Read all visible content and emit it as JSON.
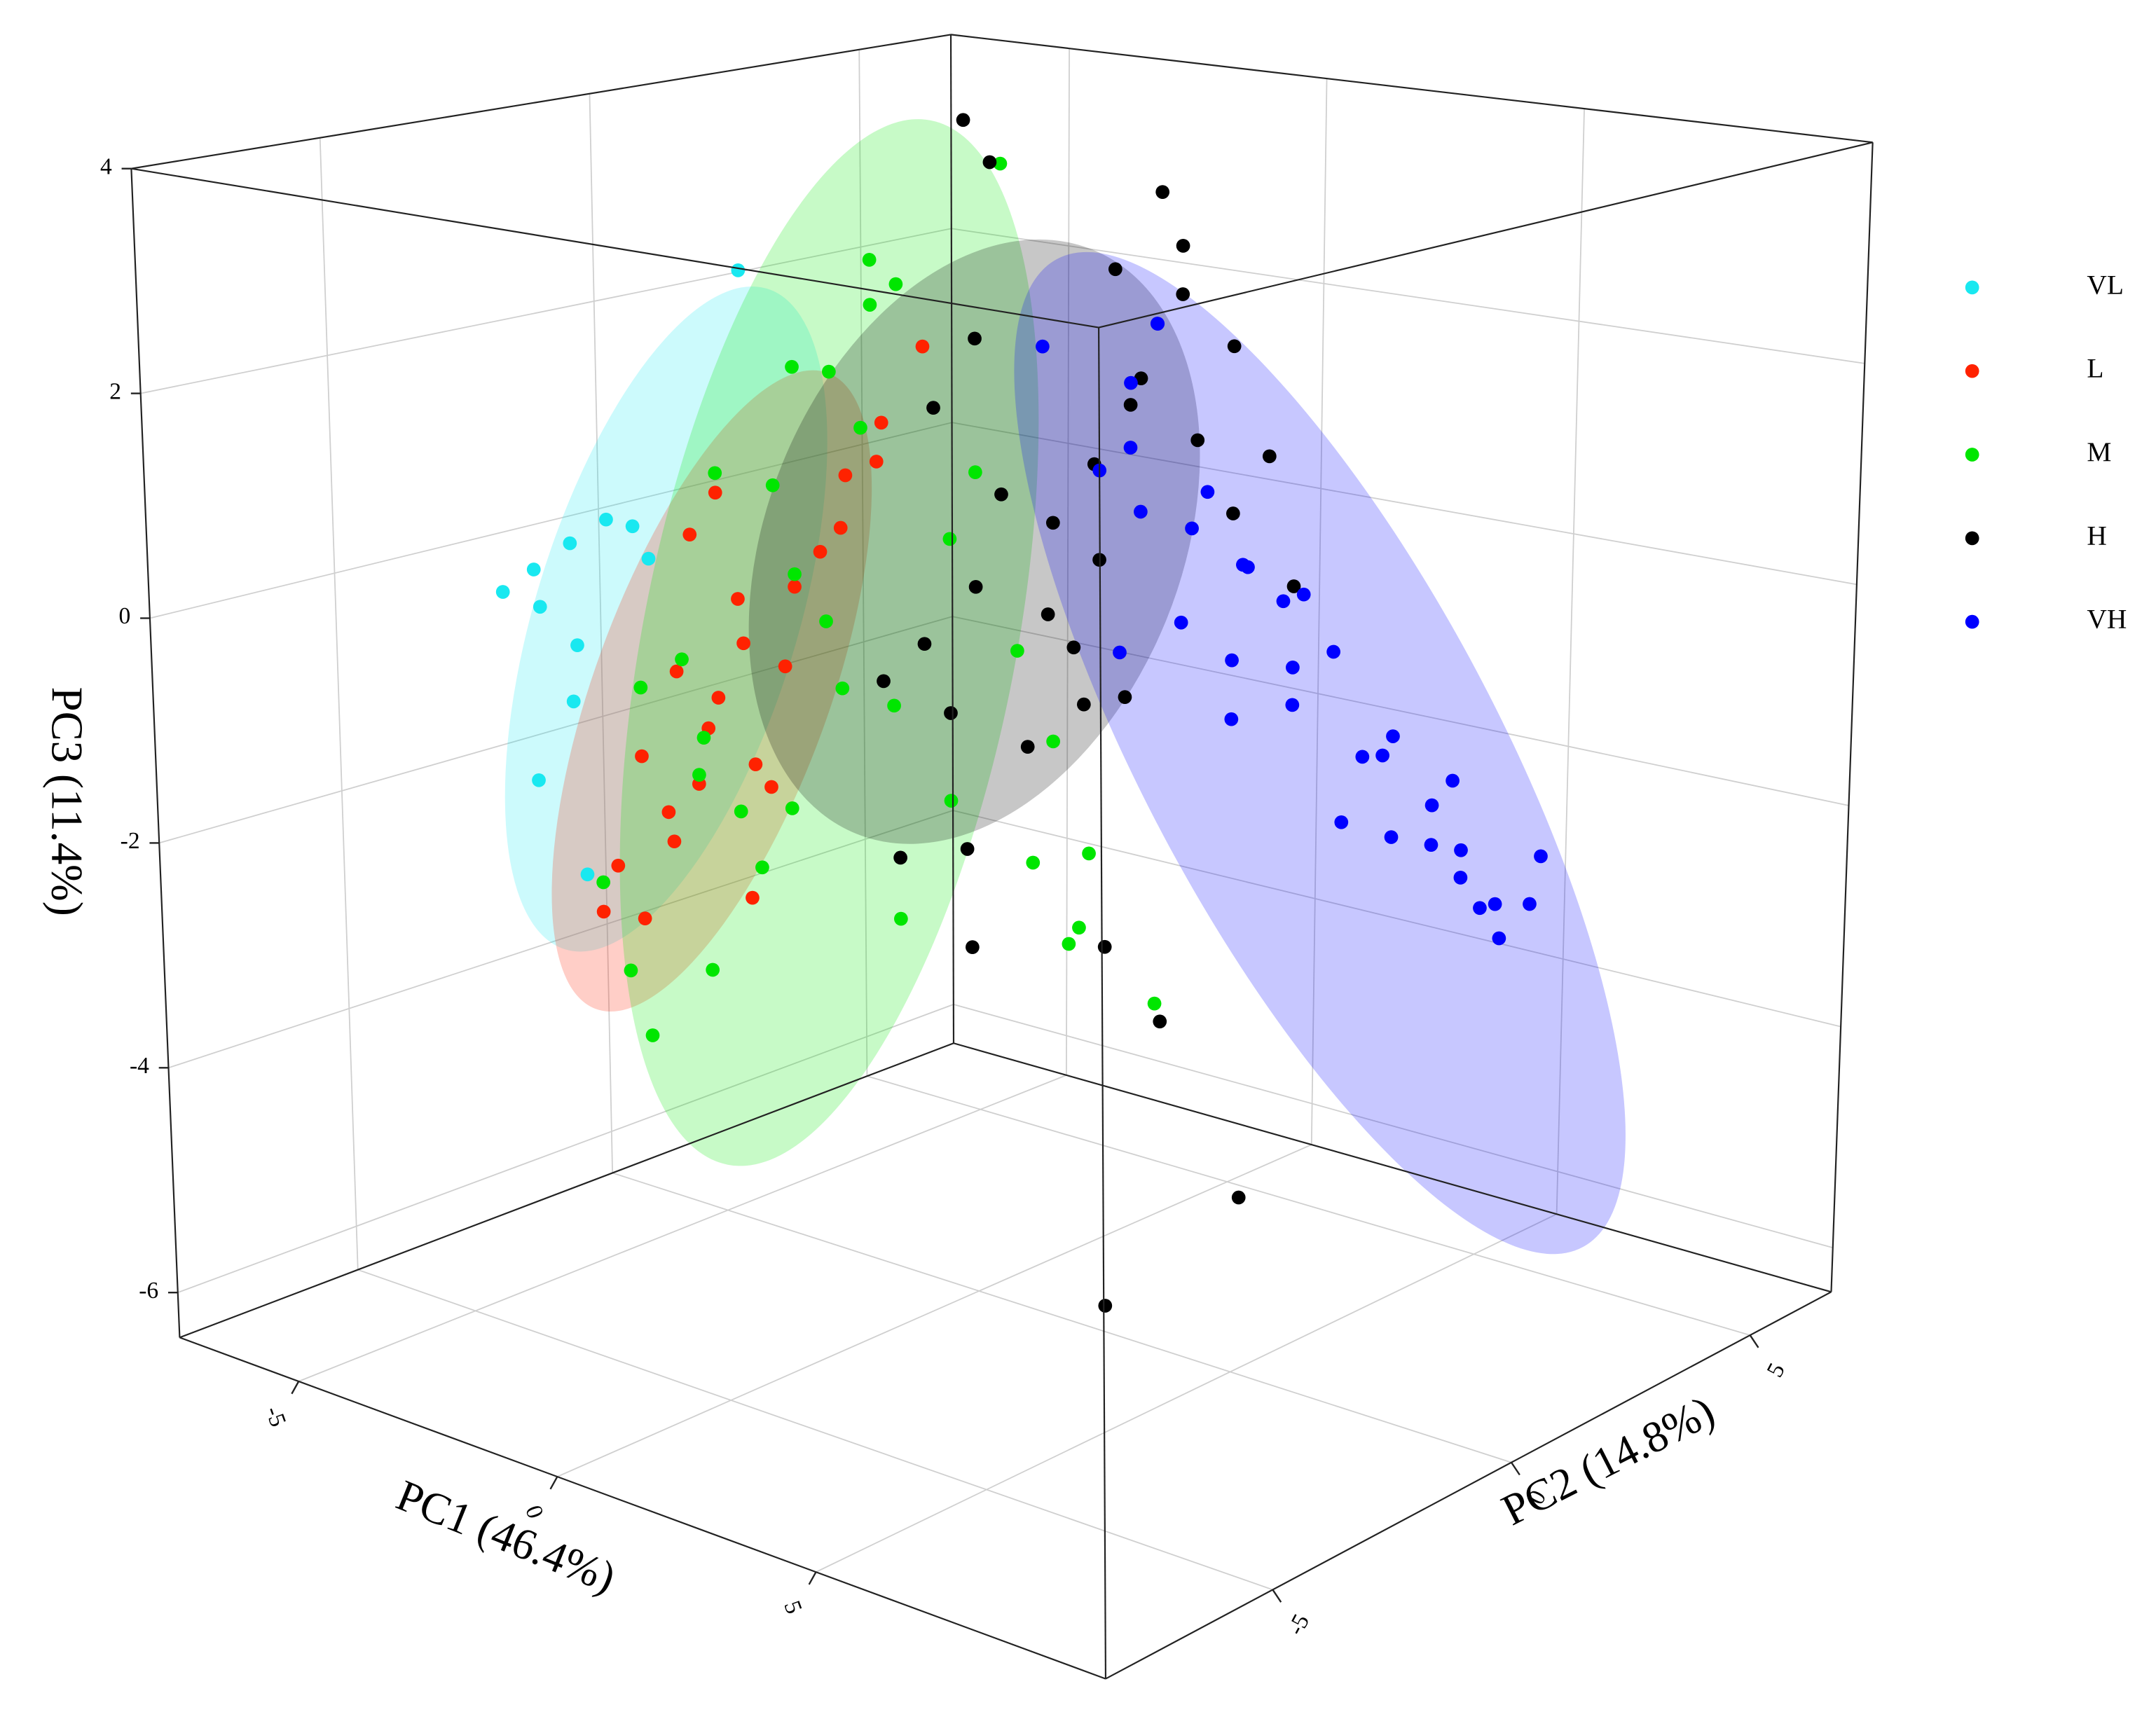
{
  "chart_data": {
    "type": "scatter3d",
    "xlabel": "PC1 (46.4%)",
    "ylabel": "PC2 (14.8%)",
    "zlabel": "PC3 (11.4%)",
    "xlim": [
      -7.3,
      10.6
    ],
    "ylim": [
      -8.5,
      6.7
    ],
    "zlim": [
      -6.4,
      4
    ],
    "xticks": [
      -5,
      0,
      5
    ],
    "yticks": [
      -5,
      0,
      5
    ],
    "zticks": [
      -6,
      -4,
      -2,
      0,
      2,
      4
    ],
    "grid": true,
    "legend": "right",
    "series": [
      {
        "name": "VL",
        "color": "#19e8f0",
        "x": [
          -3,
          -5,
          -5.2,
          -4.8,
          -4.5,
          -5,
          -4.2,
          -4.6,
          -4.4,
          -3.8,
          -4.9,
          -5.3
        ],
        "y": [
          -1.5,
          -3.5,
          -3.2,
          -3,
          -2.6,
          -2.8,
          -3.4,
          -3.1,
          -2.2,
          -2.5,
          -3.6,
          -3.8
        ],
        "z": [
          2.8,
          0.1,
          -0.3,
          0.3,
          0.5,
          -1.2,
          -2.6,
          -0.6,
          0.4,
          0.2,
          -1.8,
          -0.1
        ]
      },
      {
        "name": "L",
        "color": "#ff2200",
        "x": [
          -3,
          -2.5,
          -3.5,
          -2,
          -1.5,
          -3.2,
          -2.8,
          -3.8,
          -2.2,
          -1,
          -0.5,
          -3,
          -2.6,
          -3.4,
          -1.8,
          -2.4,
          -3.6,
          -2,
          -1.2,
          -2.9,
          -3.1,
          -0.8,
          -1.6,
          -2.7,
          -3.9
        ],
        "y": [
          -2.5,
          -2,
          -3,
          -1.5,
          -1,
          -2.8,
          -2.2,
          -3.2,
          -1.8,
          -0.8,
          -0.5,
          -1.6,
          -2.6,
          -2.4,
          -1.2,
          -2,
          -2.9,
          -2.3,
          -1.4,
          -3,
          -1.9,
          -1.1,
          -2.1,
          -2.7,
          -3.4
        ],
        "z": [
          0.5,
          -0.5,
          -1.5,
          0,
          1,
          -2,
          -1,
          -2.5,
          -1.8,
          1.5,
          2.2,
          -0.2,
          -1.2,
          -0.8,
          0.3,
          -2.8,
          -3,
          -1.5,
          0.6,
          -2.2,
          0.8,
          1.2,
          -0.6,
          -1.7,
          -2.9
        ]
      },
      {
        "name": "M",
        "color": "#00e600",
        "x": [
          -1,
          0,
          -2,
          -3,
          -4,
          -1.5,
          0.5,
          1,
          -2.5,
          -3.5,
          -0.5,
          -1.8,
          -2.2,
          0,
          1.5,
          -3,
          -4.5,
          -4,
          -1,
          0.8,
          -2,
          -3.2,
          -0.2,
          -1.4,
          2,
          -2.8,
          -3.8,
          -0.8,
          0.3,
          -1.6,
          -2.4,
          -4.2,
          1.2,
          -0.6,
          -3.4
        ],
        "y": [
          -1,
          0.5,
          -1.5,
          -2,
          -2.5,
          -0.5,
          1,
          1.2,
          -1,
          -1.8,
          0,
          -0.8,
          -2,
          -0.5,
          0.5,
          -2.2,
          -2.8,
          -2.4,
          -1.2,
          0,
          -1.6,
          -1.4,
          0.2,
          -0.2,
          1.5,
          -1.1,
          -1.9,
          -0.7,
          0.8,
          -1.3,
          -0.4,
          -2.6,
          0.6,
          -0.9,
          -2
        ],
        "z": [
          3,
          3.8,
          2,
          1,
          -1,
          2.5,
          -1.5,
          -2.5,
          0,
          -1.5,
          -2,
          -1,
          -2.5,
          0.5,
          -3,
          -3.5,
          -2.8,
          -4.2,
          1.5,
          -0.5,
          -2,
          -2.2,
          1,
          -1.2,
          -3.8,
          0.8,
          -0.8,
          -3,
          -2.6,
          -0.3,
          1.8,
          -3.6,
          -3.2,
          2.8,
          -1.8
        ]
      },
      {
        "name": "H",
        "color": "#000000",
        "x": [
          0,
          0.5,
          1,
          -0.5,
          1.5,
          2,
          0.8,
          -0.2,
          1.2,
          2.5,
          0.3,
          -0.8,
          1.8,
          0.6,
          1.4,
          -0.4,
          2.2,
          0.9,
          0.1,
          1.6,
          -1,
          2.8,
          0.4,
          1.1,
          1.9,
          -0.6,
          0.7,
          2.4,
          1.3,
          0.2,
          3,
          3.2,
          2.6,
          -0.3,
          1.7
        ],
        "y": [
          0,
          1,
          2,
          -0.5,
          2.5,
          3,
          1.5,
          0.5,
          1.2,
          3.2,
          -0.8,
          -1,
          2.2,
          0.8,
          1.8,
          0.2,
          2.8,
          1,
          0.4,
          2,
          -0.5,
          3.4,
          0.6,
          1.6,
          2.4,
          -0.2,
          1.4,
          0.1,
          -1.5,
          -0.3,
          -0.5,
          2,
          1,
          0.3,
          1.2
        ],
        "z": [
          0,
          0.5,
          1.5,
          -0.5,
          2.5,
          2,
          1,
          3.8,
          0.2,
          1,
          -1,
          -0.8,
          3,
          -0.3,
          1.8,
          4.2,
          0.5,
          -0.6,
          0.8,
          3.5,
          -2.5,
          -0.2,
          -1.5,
          2.8,
          1.2,
          1.6,
          -1.2,
          -3,
          -2,
          -3.2,
          -6,
          -5.5,
          -3.8,
          2.2,
          -1
        ]
      },
      {
        "name": "VH",
        "color": "#0000ff",
        "x": [
          0,
          1,
          2,
          3,
          4,
          1.5,
          2.5,
          3.5,
          0.5,
          -0.5,
          2,
          3,
          4.5,
          1,
          3.8,
          2.8,
          1.8,
          4.2,
          0.2,
          2.2,
          3.2,
          4,
          1.2,
          2.6,
          3.6,
          -1,
          0.8,
          1.6,
          4.8,
          2.4,
          3.4,
          -0.2,
          1.4,
          4.4,
          0.6
        ],
        "y": [
          3,
          3.5,
          4,
          5,
          6,
          3.8,
          4.5,
          5.5,
          2.5,
          4,
          4.2,
          5.2,
          6.5,
          3.2,
          5.8,
          4.8,
          4.4,
          6.2,
          2.2,
          3,
          5,
          5.4,
          2.8,
          4.6,
          6,
          4.5,
          2,
          3.4,
          6.4,
          4,
          5.6,
          1.5,
          3.6,
          5.9,
          2.6
        ],
        "z": [
          1.5,
          0.5,
          -0.5,
          -2,
          -3.5,
          -0.2,
          -1,
          -2.5,
          1,
          1.9,
          -1.5,
          -2.8,
          -3.5,
          0.2,
          -3.2,
          -2,
          -1.2,
          -3.8,
          0.8,
          0,
          -1.8,
          -2.2,
          -0.6,
          -2.6,
          -3,
          1.8,
          -0.8,
          -1,
          -3,
          -0.4,
          -2.9,
          2,
          -1.6,
          -3.4,
          0.4
        ]
      }
    ]
  }
}
